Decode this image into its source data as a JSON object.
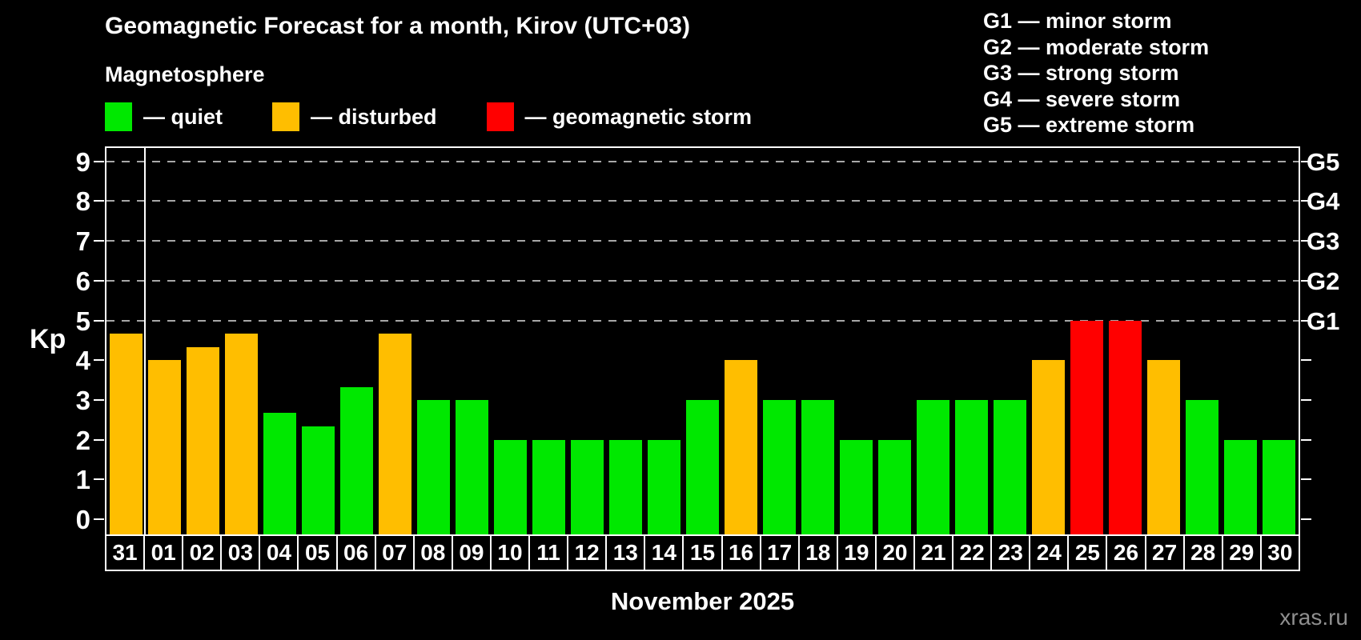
{
  "title": "Geomagnetic Forecast for a month, Kirov (UTC+03)",
  "subtitle": "Magnetosphere",
  "legend": {
    "items": [
      {
        "key": "quiet",
        "label": "— quiet",
        "color": "#00e800"
      },
      {
        "key": "disturbed",
        "label": "— disturbed",
        "color": "#ffbe00"
      },
      {
        "key": "storm",
        "label": "— geomagnetic storm",
        "color": "#ff0000"
      }
    ]
  },
  "storm_scale": [
    "G1 — minor storm",
    "G2 — moderate storm",
    "G3 — strong storm",
    "G4 — severe storm",
    "G5 — extreme storm"
  ],
  "axes": {
    "y_label": "Kp",
    "y_ticks": [
      0,
      1,
      2,
      3,
      4,
      5,
      6,
      7,
      8,
      9
    ],
    "x_label": "November 2025"
  },
  "watermark": "xras.ru",
  "chart_data": {
    "type": "bar",
    "title": "Geomagnetic Forecast for a month, Kirov (UTC+03)",
    "subtitle": "Magnetosphere",
    "xlabel": "November 2025",
    "ylabel": "Kp",
    "ylim": [
      0,
      9
    ],
    "y_ticks": [
      0,
      1,
      2,
      3,
      4,
      5,
      6,
      7,
      8,
      9
    ],
    "grid": "dashed horizontal lines at Kp 5-9 only",
    "gridlines_at": [
      5,
      6,
      7,
      8,
      9
    ],
    "legend_position": "top-left",
    "categories": [
      "31",
      "01",
      "02",
      "03",
      "04",
      "05",
      "06",
      "07",
      "08",
      "09",
      "10",
      "11",
      "12",
      "13",
      "14",
      "15",
      "16",
      "17",
      "18",
      "19",
      "20",
      "21",
      "22",
      "23",
      "24",
      "25",
      "26",
      "27",
      "28",
      "29",
      "30"
    ],
    "values": [
      4.67,
      4,
      4.33,
      4.67,
      2.67,
      2.33,
      3.33,
      4.67,
      3,
      3,
      2,
      2,
      2,
      2,
      2,
      3,
      4,
      3,
      3,
      2,
      2,
      3,
      3,
      3,
      4,
      5,
      5,
      4,
      3,
      2,
      2
    ],
    "levels": [
      "disturbed",
      "disturbed",
      "disturbed",
      "disturbed",
      "quiet",
      "quiet",
      "quiet",
      "disturbed",
      "quiet",
      "quiet",
      "quiet",
      "quiet",
      "quiet",
      "quiet",
      "quiet",
      "quiet",
      "disturbed",
      "quiet",
      "quiet",
      "quiet",
      "quiet",
      "quiet",
      "quiet",
      "quiet",
      "disturbed",
      "storm",
      "storm",
      "disturbed",
      "quiet",
      "quiet",
      "quiet"
    ],
    "level_colors": {
      "quiet": "#00e800",
      "disturbed": "#ffbe00",
      "storm": "#ff0000"
    },
    "right_axis_labels": [
      {
        "kp": 5,
        "label": "G1"
      },
      {
        "kp": 6,
        "label": "G2"
      },
      {
        "kp": 7,
        "label": "G3"
      },
      {
        "kp": 8,
        "label": "G4"
      },
      {
        "kp": 9,
        "label": "G5"
      }
    ],
    "month_separator_after_category": "31"
  }
}
